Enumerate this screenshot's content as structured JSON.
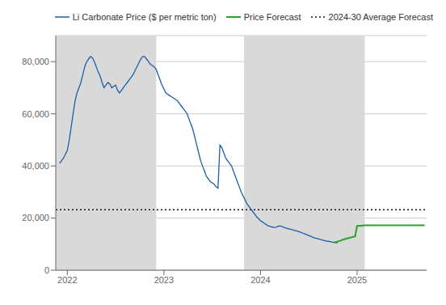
{
  "chart_data": {
    "type": "line",
    "xlim": [
      2021.88,
      2025.72
    ],
    "xticks": [
      2022,
      2023,
      2024,
      2025
    ],
    "ylim": [
      0,
      90000
    ],
    "yticks": [
      0,
      {
        "value": 20000,
        "label": "20,000"
      },
      {
        "value": 40000,
        "label": "40,000"
      },
      {
        "value": 60000,
        "label": "60,000"
      },
      {
        "value": 80000,
        "label": "80,000"
      }
    ],
    "grid": "y",
    "legend": "top right",
    "series": [
      {
        "name": "Li Carbonate Price ($ per metric ton)",
        "color": "#1a5fa8",
        "line_style": "solid",
        "x": [
          2021.92,
          2021.96,
          2022.0,
          2022.02,
          2022.04,
          2022.06,
          2022.08,
          2022.1,
          2022.12,
          2022.14,
          2022.16,
          2022.18,
          2022.2,
          2022.22,
          2022.24,
          2022.26,
          2022.28,
          2022.3,
          2022.32,
          2022.34,
          2022.36,
          2022.38,
          2022.4,
          2022.42,
          2022.44,
          2022.46,
          2022.48,
          2022.5,
          2022.52,
          2022.54,
          2022.56,
          2022.58,
          2022.6,
          2022.62,
          2022.64,
          2022.66,
          2022.68,
          2022.7,
          2022.72,
          2022.74,
          2022.76,
          2022.78,
          2022.8,
          2022.82,
          2022.84,
          2022.86,
          2022.88,
          2022.9,
          2022.92,
          2022.94,
          2022.96,
          2022.98,
          2023.0,
          2023.02,
          2023.04,
          2023.06,
          2023.08,
          2023.1,
          2023.12,
          2023.14,
          2023.16,
          2023.18,
          2023.2,
          2023.22,
          2023.24,
          2023.26,
          2023.28,
          2023.3,
          2023.32,
          2023.34,
          2023.36,
          2023.38,
          2023.4,
          2023.42,
          2023.44,
          2023.46,
          2023.48,
          2023.5,
          2023.52,
          2023.54,
          2023.56,
          2023.58,
          2023.6,
          2023.62,
          2023.64,
          2023.66,
          2023.68,
          2023.7,
          2023.72,
          2023.74,
          2023.76,
          2023.78,
          2023.8,
          2023.82,
          2023.84,
          2023.86,
          2023.88,
          2023.9,
          2023.92,
          2023.94,
          2023.96,
          2023.98,
          2024.0,
          2024.02,
          2024.04,
          2024.06,
          2024.08,
          2024.1,
          2024.12,
          2024.14,
          2024.16,
          2024.18,
          2024.2,
          2024.22,
          2024.24,
          2024.26,
          2024.28,
          2024.3,
          2024.32,
          2024.34,
          2024.36,
          2024.38,
          2024.4,
          2024.42,
          2024.44,
          2024.46,
          2024.48,
          2024.5,
          2024.52,
          2024.54,
          2024.56,
          2024.58,
          2024.6,
          2024.62,
          2024.64,
          2024.66,
          2024.68,
          2024.7,
          2024.72,
          2024.74,
          2024.76,
          2024.78,
          2024.8
        ],
        "values": [
          41000,
          43000,
          46000,
          50000,
          55000,
          60000,
          65000,
          68000,
          70000,
          72000,
          75000,
          78000,
          80000,
          81000,
          82000,
          81500,
          80000,
          78000,
          76000,
          74500,
          72000,
          70000,
          71000,
          72000,
          71500,
          70000,
          70500,
          71000,
          69000,
          68000,
          69000,
          70000,
          71000,
          72000,
          73000,
          74000,
          75000,
          76500,
          78000,
          79500,
          81000,
          82000,
          82000,
          81000,
          80000,
          79000,
          78500,
          78000,
          77000,
          75000,
          73000,
          71000,
          69500,
          68000,
          67500,
          67000,
          66500,
          66000,
          65500,
          65000,
          64000,
          63000,
          62000,
          61000,
          60000,
          58000,
          56000,
          54000,
          51000,
          48000,
          45000,
          42000,
          40000,
          38000,
          36000,
          35000,
          34000,
          33500,
          33000,
          32000,
          31500,
          48000,
          47000,
          45000,
          43000,
          42000,
          41000,
          40000,
          38000,
          36000,
          34000,
          32000,
          30000,
          28500,
          27000,
          25500,
          24500,
          23500,
          22500,
          21500,
          20500,
          19800,
          19000,
          18500,
          18000,
          17500,
          17000,
          16800,
          16600,
          16400,
          16500,
          16800,
          17000,
          16800,
          16500,
          16200,
          16000,
          15800,
          15600,
          15400,
          15200,
          15000,
          14800,
          14500,
          14200,
          13900,
          13600,
          13300,
          13000,
          12700,
          12400,
          12200,
          12000,
          11800,
          11600,
          11400,
          11200,
          11100,
          11000,
          10800,
          10700,
          10600,
          10500
        ]
      },
      {
        "name": "Price Forecast",
        "color": "#2ca02c",
        "line_style": "solid",
        "x": [
          2024.76,
          2024.78,
          2024.8,
          2024.82,
          2024.84,
          2024.86,
          2024.88,
          2024.9,
          2024.92,
          2024.94,
          2024.96,
          2024.98,
          2025.0,
          2025.04,
          2025.08,
          2025.12,
          2025.16,
          2025.2,
          2025.3,
          2025.4,
          2025.5,
          2025.6,
          2025.7
        ],
        "values": [
          10700,
          10800,
          11000,
          11200,
          11500,
          11800,
          12000,
          12200,
          12400,
          12600,
          12800,
          13000,
          17000,
          17100,
          17200,
          17200,
          17200,
          17200,
          17200,
          17200,
          17200,
          17200,
          17200
        ]
      }
    ],
    "reference_lines": [
      {
        "name": "2024-30 Average Forecast",
        "y": 23200,
        "color": "#111111",
        "line_style": "dotted"
      }
    ],
    "shaded_regions": [
      {
        "x0": 2021.88,
        "x1": 2022.92,
        "color": "#d9d9d9"
      },
      {
        "x0": 2023.83,
        "x1": 2025.08,
        "color": "#d9d9d9"
      }
    ]
  }
}
